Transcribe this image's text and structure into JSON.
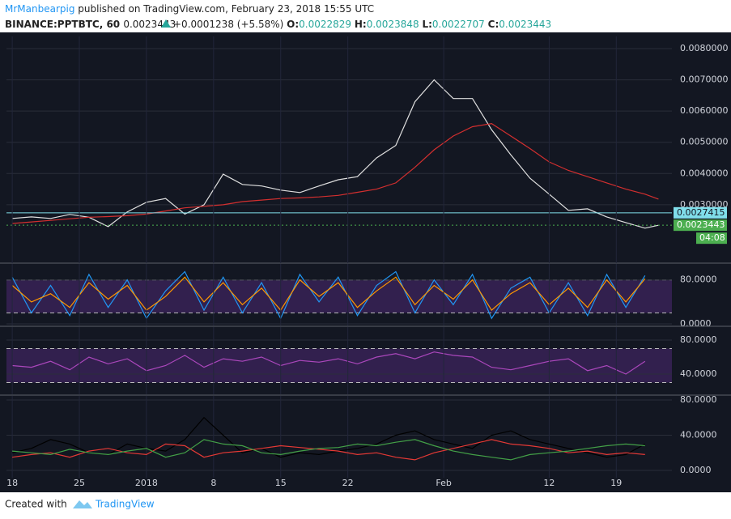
{
  "header": {
    "author": "MrManbearpig",
    "published": "published on TradingView.com, February 23, 2018 15:55 UTC",
    "symbol": "BINANCE:PPTBTC, 60",
    "last": "0.0023443",
    "change": "+0.0001238 (+5.58%)",
    "open_label": "O:",
    "open": "0.0022829",
    "high_label": "H:",
    "high": "0.0023848",
    "low_label": "L:",
    "low": "0.0022707",
    "close_label": "C:",
    "close": "0.0023443"
  },
  "footer": {
    "created": "Created with",
    "brand": "TradingView"
  },
  "chart_data": [
    {
      "type": "line",
      "xlim": [
        -0.6,
        68.8
      ],
      "ylim": [
        0.00113,
        0.00839
      ],
      "yticks": [
        {
          "value": 0.003,
          "label": "0.0030000"
        },
        {
          "value": 0.004,
          "label": "0.0040000"
        },
        {
          "value": 0.005,
          "label": "0.0050000"
        },
        {
          "value": 0.006,
          "label": "0.0060000"
        },
        {
          "value": 0.007,
          "label": "0.0070000"
        },
        {
          "value": 0.008,
          "label": "0.0080000"
        }
      ],
      "x": [
        0,
        2,
        4,
        6,
        8,
        10,
        12,
        14,
        16,
        18,
        20,
        22,
        24,
        26,
        28,
        30,
        32,
        34,
        36,
        38,
        40,
        42,
        44,
        46,
        48,
        50,
        52,
        54,
        56,
        58,
        60,
        62,
        64,
        66,
        67.4
      ],
      "series": [
        {
          "color": "#e0e0e0",
          "values": [
            0.00256,
            0.00261,
            0.00256,
            0.00269,
            0.0026,
            0.0023,
            0.00277,
            0.00308,
            0.0032,
            0.0027,
            0.003,
            0.00398,
            0.00365,
            0.0036,
            0.00347,
            0.00339,
            0.0036,
            0.0038,
            0.0039,
            0.0045,
            0.0049,
            0.0063,
            0.007,
            0.0064,
            0.0064,
            0.0054,
            0.0046,
            0.00385,
            0.00334,
            0.00282,
            0.00287,
            0.00261,
            0.00243,
            0.00225,
            0.0023443
          ]
        },
        {
          "color": "#d32f2f",
          "values": [
            0.0024,
            0.00245,
            0.0025,
            0.00255,
            0.0026,
            0.00262,
            0.00265,
            0.0027,
            0.0028,
            0.0029,
            0.00295,
            0.003,
            0.0031,
            0.00315,
            0.0032,
            0.00322,
            0.00325,
            0.0033,
            0.0034,
            0.0035,
            0.0037,
            0.0042,
            0.00476,
            0.0052,
            0.0055,
            0.0056,
            0.0052,
            0.0048,
            0.00437,
            0.0041,
            0.0039,
            0.0037,
            0.0035,
            0.00334,
            0.00318
          ]
        }
      ],
      "price_lines": [
        {
          "value": 0.0027415,
          "label": "0.0027415",
          "color": "#80deea"
        },
        {
          "value": 0.0023443,
          "label": "0.0023443",
          "color": "#4caf50"
        }
      ],
      "countdown": "04:08"
    },
    {
      "type": "line",
      "xlim": [
        -0.6,
        68.8
      ],
      "ylim": [
        -2.9,
        109
      ],
      "yticks": [
        {
          "value": 0,
          "label": "0.0000"
        },
        {
          "value": 80,
          "label": "80.0000"
        }
      ],
      "band": [
        20,
        80
      ],
      "x": [
        0,
        2,
        4,
        6,
        8,
        10,
        12,
        14,
        16,
        18,
        20,
        22,
        24,
        26,
        28,
        30,
        32,
        34,
        36,
        38,
        40,
        42,
        44,
        46,
        48,
        50,
        52,
        54,
        56,
        58,
        60,
        62,
        64,
        66
      ],
      "series": [
        {
          "color": "#2196f3",
          "values": [
            85,
            20,
            70,
            15,
            90,
            30,
            80,
            10,
            60,
            95,
            25,
            85,
            20,
            75,
            10,
            90,
            40,
            85,
            15,
            70,
            95,
            20,
            80,
            35,
            90,
            10,
            65,
            85,
            20,
            75,
            15,
            90,
            30,
            88
          ]
        },
        {
          "color": "#ff9800",
          "values": [
            70,
            40,
            55,
            30,
            75,
            45,
            70,
            25,
            50,
            85,
            40,
            75,
            35,
            65,
            25,
            80,
            50,
            75,
            30,
            60,
            85,
            35,
            70,
            45,
            80,
            25,
            55,
            75,
            35,
            65,
            30,
            80,
            40,
            82
          ]
        }
      ]
    },
    {
      "type": "line",
      "xlim": [
        -0.6,
        68.8
      ],
      "ylim": [
        16.2,
        95.2
      ],
      "yticks": [
        {
          "value": 40,
          "label": "40.0000"
        },
        {
          "value": 80,
          "label": "80.0000"
        }
      ],
      "band": [
        30,
        70
      ],
      "x": [
        0,
        2,
        4,
        6,
        8,
        10,
        12,
        14,
        16,
        18,
        20,
        22,
        24,
        26,
        28,
        30,
        32,
        34,
        36,
        38,
        40,
        42,
        44,
        46,
        48,
        50,
        52,
        54,
        56,
        58,
        60,
        62,
        64,
        66
      ],
      "series": [
        {
          "color": "#ab47bc",
          "values": [
            50,
            48,
            55,
            45,
            60,
            52,
            58,
            44,
            50,
            62,
            48,
            58,
            55,
            60,
            50,
            56,
            54,
            58,
            52,
            60,
            64,
            58,
            66,
            62,
            60,
            48,
            45,
            50,
            55,
            58,
            44,
            50,
            40,
            55
          ]
        }
      ]
    },
    {
      "type": "line",
      "xlim": [
        -0.6,
        68.8
      ],
      "ylim": [
        -8.3,
        84.6
      ],
      "yticks": [
        {
          "value": 0,
          "label": "0.0000"
        },
        {
          "value": 40,
          "label": "40.0000"
        },
        {
          "value": 80,
          "label": "80.0000"
        }
      ],
      "xticks": [
        {
          "value": 0,
          "label": "18"
        },
        {
          "value": 7,
          "label": "25"
        },
        {
          "value": 14,
          "label": "2018"
        },
        {
          "value": 21,
          "label": "8"
        },
        {
          "value": 28,
          "label": "15"
        },
        {
          "value": 35,
          "label": "22"
        },
        {
          "value": 45,
          "label": "Feb"
        },
        {
          "value": 56,
          "label": "12"
        },
        {
          "value": 63,
          "label": "19"
        }
      ],
      "x": [
        0,
        2,
        4,
        6,
        8,
        10,
        12,
        14,
        16,
        18,
        20,
        22,
        24,
        26,
        28,
        30,
        32,
        34,
        36,
        38,
        40,
        42,
        44,
        46,
        48,
        50,
        52,
        54,
        56,
        58,
        60,
        62,
        64,
        66
      ],
      "series": [
        {
          "color": "#000000",
          "values": [
            20,
            25,
            35,
            30,
            20,
            18,
            30,
            25,
            22,
            35,
            60,
            40,
            20,
            25,
            15,
            20,
            18,
            22,
            25,
            30,
            40,
            45,
            35,
            30,
            25,
            40,
            45,
            35,
            30,
            25,
            20,
            15,
            18,
            30
          ]
        },
        {
          "color": "#e53935",
          "values": [
            15,
            18,
            20,
            15,
            22,
            25,
            20,
            18,
            30,
            28,
            15,
            20,
            22,
            25,
            28,
            26,
            24,
            22,
            18,
            20,
            15,
            12,
            20,
            25,
            30,
            35,
            30,
            28,
            25,
            20,
            22,
            18,
            20,
            18
          ]
        },
        {
          "color": "#43a047",
          "values": [
            22,
            20,
            18,
            24,
            20,
            18,
            22,
            25,
            15,
            20,
            35,
            30,
            28,
            20,
            18,
            22,
            25,
            26,
            30,
            28,
            32,
            35,
            28,
            22,
            18,
            15,
            12,
            18,
            20,
            22,
            25,
            28,
            30,
            28
          ]
        }
      ]
    }
  ]
}
